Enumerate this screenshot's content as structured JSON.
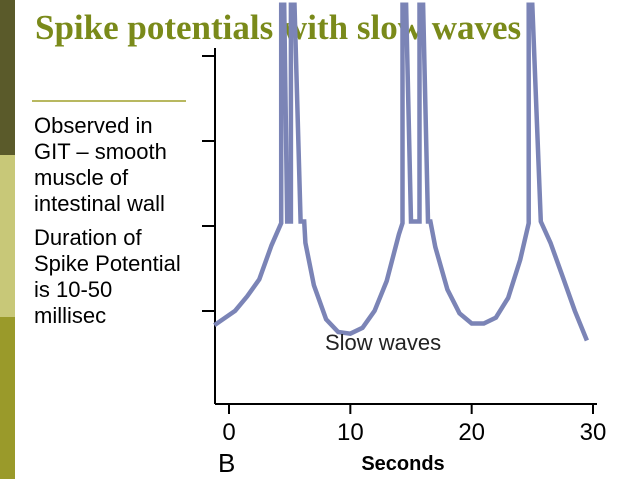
{
  "slide": {
    "title": "Spike potentials with slow waves",
    "bullets": [
      "Observed in GIT – smooth muscle of intestinal wall",
      "Duration of Spike Potential is 10-50 millisec"
    ],
    "colors": {
      "title": "#7a8a1a",
      "accent_rule": "#b8b860",
      "sidebar_dark": "#5a5a2a",
      "sidebar_light": "#c8c878",
      "sidebar_olive": "#9a9a2a",
      "trace": "#7b84b6",
      "axis": "#000000"
    }
  },
  "chart_data": {
    "type": "line",
    "panel_label": "B",
    "xlabel": "Seconds",
    "ylabel": "",
    "xlim": [
      0,
      30
    ],
    "x_ticks": [
      "0",
      "10",
      "20",
      "30"
    ],
    "annotation": "Slow waves",
    "y_tick_count": 4,
    "series": [
      {
        "values": [
          [
            -1.2,
            0.88
          ],
          [
            0.5,
            1.05
          ],
          [
            1.5,
            1.22
          ],
          [
            2.5,
            1.42
          ],
          [
            3.5,
            1.82
          ],
          [
            4.3,
            2.08
          ],
          [
            4.3,
            4.65
          ],
          [
            4.55,
            4.65
          ],
          [
            4.8,
            2.1
          ],
          [
            5.1,
            2.1
          ],
          [
            5.1,
            4.65
          ],
          [
            5.4,
            4.65
          ],
          [
            5.9,
            2.1
          ],
          [
            6.2,
            2.1
          ],
          [
            6.3,
            1.85
          ],
          [
            7.0,
            1.35
          ],
          [
            8.0,
            0.95
          ],
          [
            9.0,
            0.8
          ],
          [
            10.0,
            0.78
          ],
          [
            11.0,
            0.85
          ],
          [
            12.0,
            1.05
          ],
          [
            13.0,
            1.4
          ],
          [
            14.0,
            1.95
          ],
          [
            14.3,
            2.08
          ],
          [
            14.3,
            4.65
          ],
          [
            14.6,
            4.65
          ],
          [
            15.0,
            2.1
          ],
          [
            15.7,
            2.1
          ],
          [
            15.7,
            4.65
          ],
          [
            16.0,
            4.65
          ],
          [
            16.4,
            2.1
          ],
          [
            16.6,
            2.1
          ],
          [
            17.0,
            1.8
          ],
          [
            18.0,
            1.3
          ],
          [
            19.0,
            1.02
          ],
          [
            20.0,
            0.9
          ],
          [
            21.0,
            0.9
          ],
          [
            22.0,
            0.97
          ],
          [
            23.0,
            1.2
          ],
          [
            24.0,
            1.65
          ],
          [
            24.7,
            2.08
          ],
          [
            24.7,
            4.65
          ],
          [
            25.0,
            4.65
          ],
          [
            25.7,
            2.1
          ],
          [
            26.5,
            1.85
          ],
          [
            27.5,
            1.45
          ],
          [
            28.5,
            1.05
          ],
          [
            29.5,
            0.7
          ]
        ]
      }
    ]
  }
}
